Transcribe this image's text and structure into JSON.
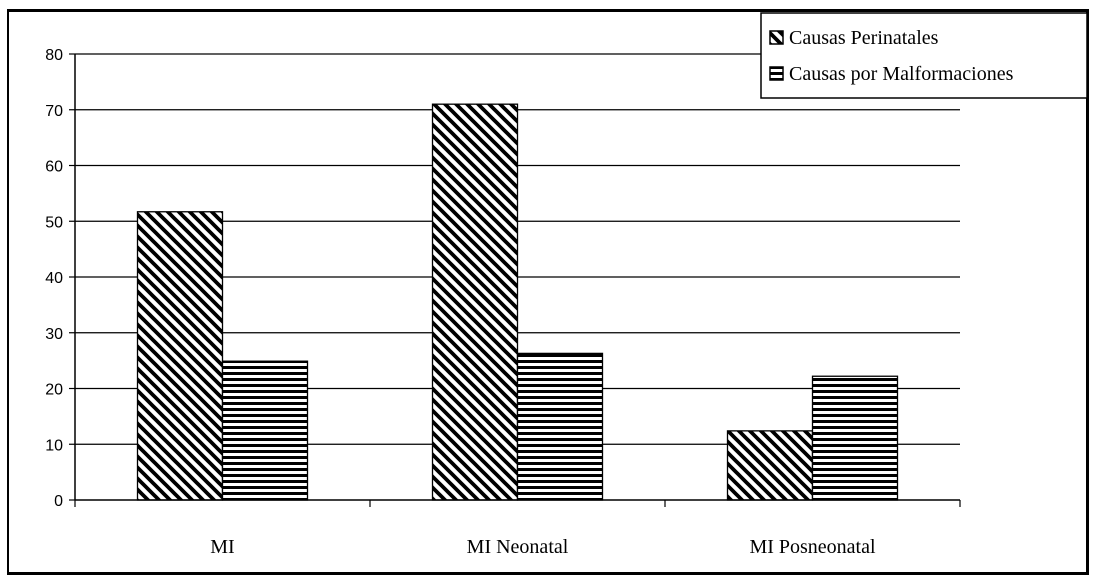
{
  "chart_data": {
    "type": "bar",
    "categories": [
      "MI",
      "MI Neonatal",
      "MI Posneonatal"
    ],
    "series": [
      {
        "name": "Causas Perinatales",
        "values": [
          51.7,
          71.0,
          12.4
        ],
        "pattern": "diagonal"
      },
      {
        "name": "Causas por Malformaciones",
        "values": [
          24.9,
          26.3,
          22.2
        ],
        "pattern": "horizontal"
      }
    ],
    "title": "",
    "xlabel": "",
    "ylabel": "",
    "ylim": [
      0,
      80
    ],
    "yticks": [
      0,
      10,
      20,
      30,
      40,
      50,
      60,
      70,
      80
    ],
    "grid": true,
    "legend": "top-right",
    "colors": {
      "bar_fill": "#ffffff",
      "hatch": "#000000",
      "grid": "#000000",
      "axis": "#000000"
    }
  }
}
